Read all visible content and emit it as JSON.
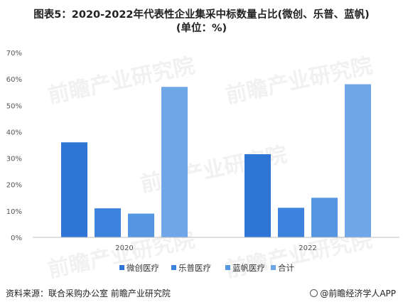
{
  "title_line1": "图表5：2020-2022年代表性企业集采中标数量占比(微创、乐普、蓝帆)",
  "title_line2": "(单位：%)",
  "source": "资料来源：联合采购办公室 前瞻产业研究院",
  "brand": "@前瞻经济学人APP",
  "watermark": "前瞻产业研究院",
  "chart_data": {
    "type": "bar",
    "categories": [
      "2020",
      "2022"
    ],
    "series": [
      {
        "name": "微创医疗",
        "values": [
          36,
          31.5
        ],
        "color": "#2e75d6"
      },
      {
        "name": "乐普医疗",
        "values": [
          11,
          11.2
        ],
        "color": "#3d82dc"
      },
      {
        "name": "蓝帆医疗",
        "values": [
          9,
          15
        ],
        "color": "#5596e2"
      },
      {
        "name": "合计",
        "values": [
          57,
          58
        ],
        "color": "#6ea6e8"
      }
    ],
    "ylim": [
      0,
      70
    ],
    "yticks": [
      "0%",
      "10%",
      "20%",
      "30%",
      "40%",
      "50%",
      "60%",
      "70%"
    ],
    "grid": false,
    "legend": "bottom"
  }
}
